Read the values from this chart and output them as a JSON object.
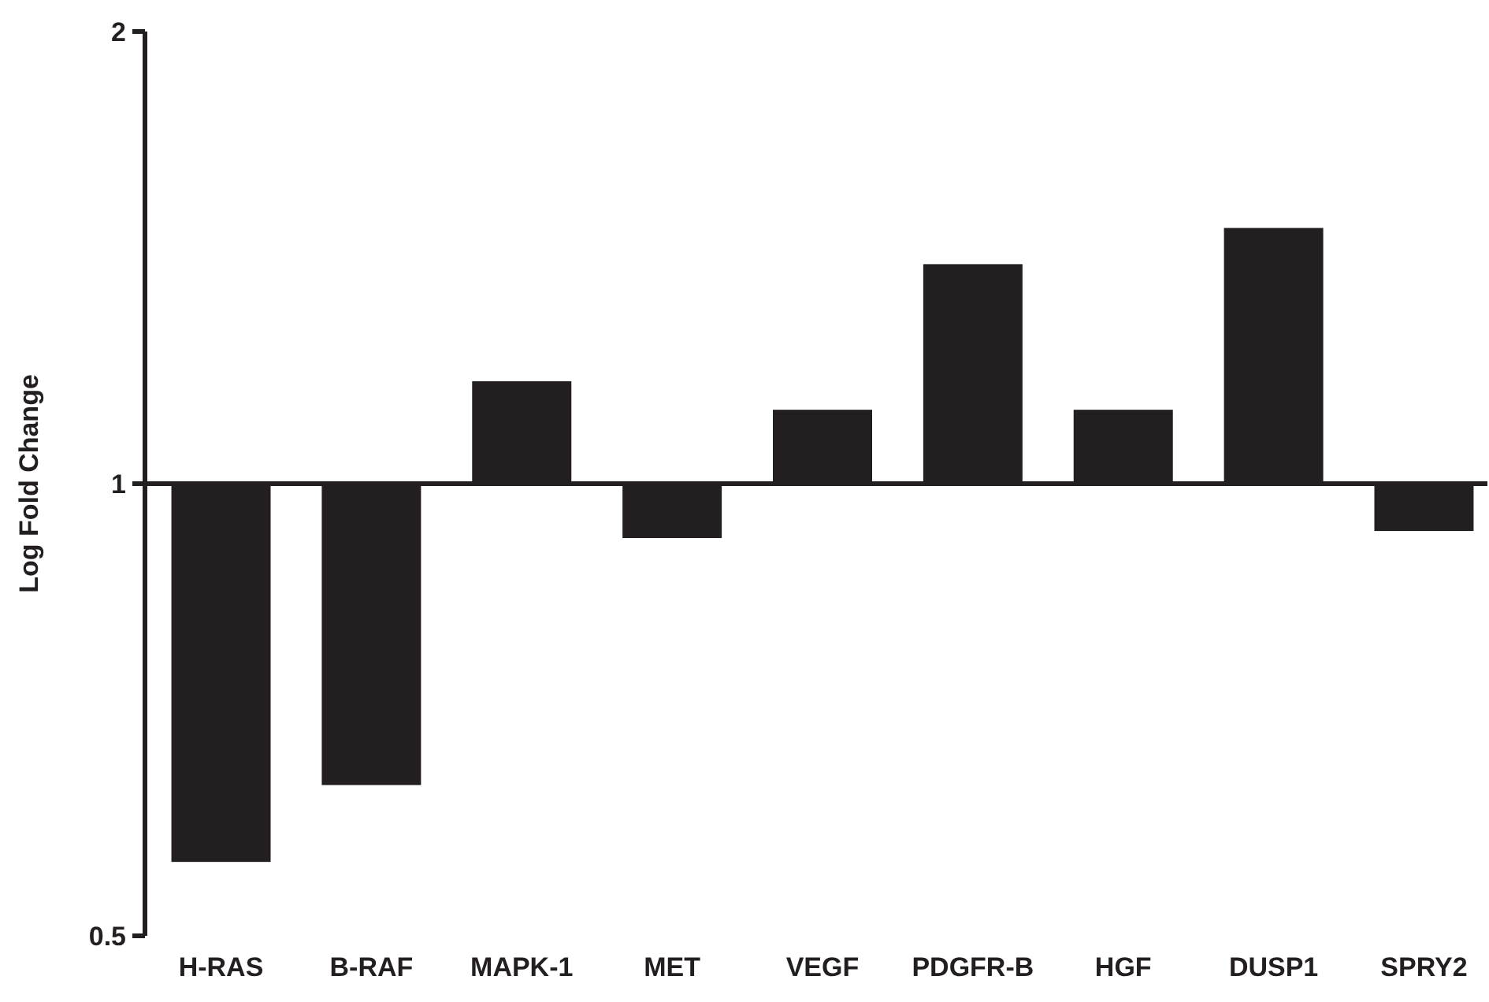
{
  "chart_data": {
    "type": "bar",
    "ylabel": "Log Fold Change",
    "log": true,
    "ylim": [
      0.5,
      2
    ],
    "yticks": [
      0.5,
      1,
      2
    ],
    "categories": [
      "H-RAS",
      "B-RAF",
      "MAPK-1",
      "MET",
      "VEGF",
      "PDGFR-B",
      "HGF",
      "DUSP1",
      "SPRY2"
    ],
    "base": [
      1,
      1,
      1,
      1,
      1,
      1,
      1,
      1,
      1
    ],
    "values": [
      -0.44,
      -0.37,
      0.17,
      -0.08,
      0.12,
      0.4,
      0.12,
      0.48,
      -0.07
    ],
    "color": "#231f20"
  }
}
